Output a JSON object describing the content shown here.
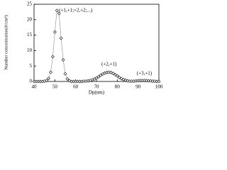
{
  "chart_data": {
    "type": "line",
    "x_label": "Dp(nm)",
    "y_label": "Number concentration(#/cm³)",
    "annotations": [
      {
        "text": "(+1,+1;+2,+2;...)",
        "x": 60,
        "y": 23
      },
      {
        "text": "(+2,+1)",
        "x": 76,
        "y": 5.5
      },
      {
        "text": "(+3,+1)",
        "x": 93,
        "y": 2.5
      }
    ],
    "x": [
      40,
      41,
      42,
      43,
      44,
      45,
      46,
      47,
      48,
      49,
      50,
      51,
      52,
      53,
      54,
      55,
      56,
      57,
      58,
      59,
      60,
      61,
      62,
      63,
      64,
      65,
      66,
      67,
      68,
      69,
      70,
      71,
      72,
      73,
      74,
      75,
      76,
      77,
      78,
      79,
      80,
      81,
      82,
      83,
      84,
      85,
      86,
      87,
      88,
      89,
      90,
      91,
      92,
      93,
      94,
      95,
      96,
      97,
      98,
      99,
      100
    ],
    "series": [
      {
        "name": "concentration",
        "color": "#888888",
        "values": [
          0,
          0,
          0,
          0,
          0,
          0.1,
          0.3,
          1,
          3,
          8,
          16,
          23,
          22,
          14,
          7,
          2.5,
          0.8,
          0.2,
          0,
          0,
          0,
          0,
          0,
          0,
          0.1,
          0.1,
          0.2,
          0.3,
          0.5,
          0.8,
          1.1,
          1.5,
          2,
          2.4,
          2.7,
          2.9,
          3,
          2.9,
          2.6,
          2.2,
          1.8,
          1.3,
          0.9,
          0.6,
          0.4,
          0.2,
          0.1,
          0.1,
          0.1,
          0.2,
          0.2,
          0.3,
          0.3,
          0.3,
          0.3,
          0.2,
          0.2,
          0.1,
          0.1,
          0,
          0
        ]
      }
    ],
    "xlim": [
      40,
      100
    ],
    "xticks": [
      40,
      50,
      60,
      70,
      80,
      90,
      100
    ],
    "ylim": [
      0,
      25
    ],
    "yticks": [
      0,
      5,
      10,
      15,
      20,
      25
    ]
  }
}
